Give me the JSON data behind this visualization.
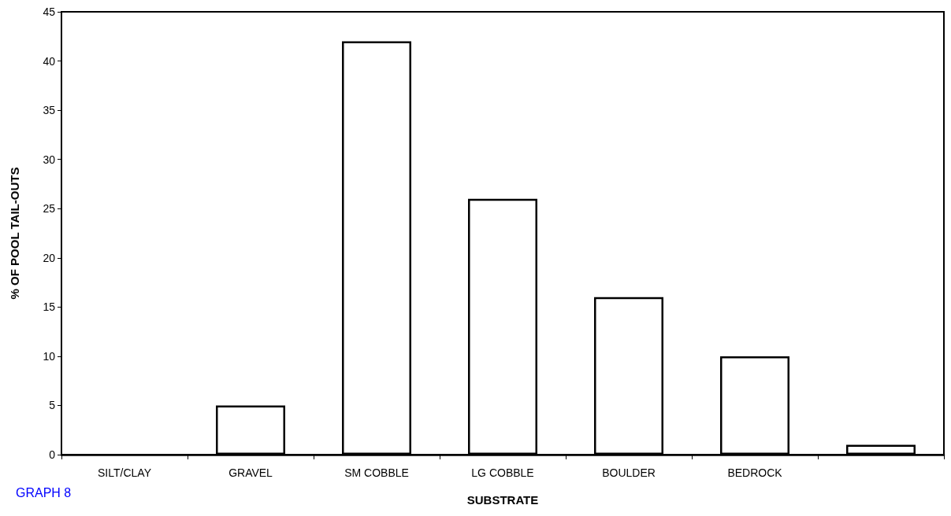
{
  "chart_data": {
    "type": "bar",
    "xlabel": "SUBSTRATE",
    "ylabel": "% OF POOL TAIL-OUTS",
    "categories": [
      "SILT/CLAY",
      "GRAVEL",
      "SM COBBLE",
      "LG COBBLE",
      "BOULDER",
      "BEDROCK",
      null
    ],
    "values": [
      0,
      5,
      42,
      26,
      16,
      10,
      1
    ],
    "color": "#ffffff",
    "ylim": [
      0,
      45
    ],
    "yticks": [
      0,
      5,
      10,
      15,
      20,
      25,
      30,
      35,
      40,
      45
    ],
    "grid": false,
    "annotations": [
      "GRAPH 8"
    ]
  }
}
